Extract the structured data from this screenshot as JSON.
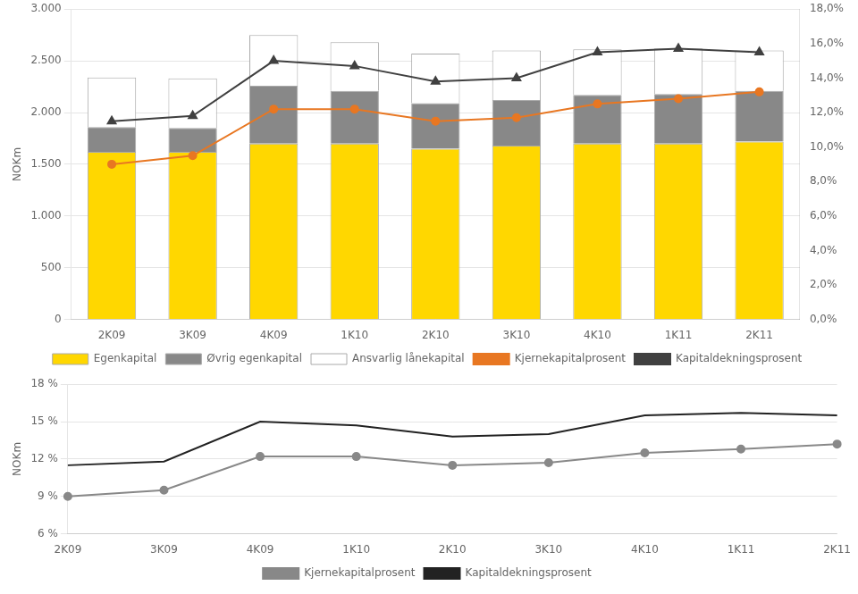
{
  "chart_data": [
    {
      "type": "bar",
      "stacked": true,
      "grid": true,
      "legend": "bottom",
      "ylabel": "NOKm",
      "categories": [
        "2K09",
        "3K09",
        "4K09",
        "1K10",
        "2K10",
        "3K10",
        "4K10",
        "1K11",
        "2K11"
      ],
      "series": [
        {
          "name": "Egenkapital",
          "color": "#FFD700",
          "values": [
            1620,
            1620,
            1700,
            1700,
            1650,
            1680,
            1700,
            1700,
            1720
          ]
        },
        {
          "name": "Øvrig egenkapital",
          "color": "#888888",
          "values": [
            240,
            230,
            560,
            510,
            440,
            440,
            470,
            480,
            490
          ]
        },
        {
          "name": "Ansvarlig lånekapital",
          "color": "#FFFFFF",
          "values": [
            480,
            480,
            490,
            470,
            480,
            480,
            440,
            440,
            390
          ]
        },
        {
          "name": "Kjernekapitalprosent",
          "type": "line",
          "axis": "y2",
          "color": "#E87722",
          "marker": "circle",
          "values": [
            0.09,
            0.095,
            0.122,
            0.122,
            0.115,
            0.117,
            0.125,
            0.128,
            0.132
          ]
        },
        {
          "name": "Kapitaldekningsprosent",
          "type": "line",
          "axis": "y2",
          "color": "#404040",
          "marker": "triangle",
          "values": [
            0.115,
            0.118,
            0.15,
            0.147,
            0.138,
            0.14,
            0.155,
            0.157,
            0.155
          ]
        }
      ],
      "ylim": [
        0,
        3000
      ],
      "yticks": [
        0,
        500,
        {
          "value": 1000,
          "label": "1.000"
        },
        {
          "value": 1500,
          "label": "1.500"
        },
        {
          "value": 2000,
          "label": "2.000"
        },
        {
          "value": 2500,
          "label": "2.500"
        },
        {
          "value": 3000,
          "label": "3.000"
        }
      ],
      "y2lim": [
        0,
        0.18
      ],
      "y2ticks": [
        {
          "value": 0.0,
          "label": "0,0%"
        },
        {
          "value": 0.02,
          "label": "2,0%"
        },
        {
          "value": 0.04,
          "label": "4,0%"
        },
        {
          "value": 0.06,
          "label": "6,0%"
        },
        {
          "value": 0.08,
          "label": "8,0%"
        },
        {
          "value": 0.1,
          "label": "10,0%"
        },
        {
          "value": 0.12,
          "label": "12,0%"
        },
        {
          "value": 0.14,
          "label": "14,0%"
        },
        {
          "value": 0.16,
          "label": "16,0%"
        },
        {
          "value": 0.18,
          "label": "18,0%"
        }
      ]
    },
    {
      "type": "line",
      "grid": true,
      "legend": "bottom",
      "ylabel": "NOKm",
      "categories": [
        "2K09",
        "3K09",
        "4K09",
        "1K10",
        "2K10",
        "3K10",
        "4K10",
        "1K11",
        "2K11"
      ],
      "series": [
        {
          "name": "Kjernekapitalprosent",
          "color": "#888888",
          "marker": "circle",
          "values": [
            0.09,
            0.095,
            0.122,
            0.122,
            0.115,
            0.117,
            0.125,
            0.128,
            0.132
          ]
        },
        {
          "name": "Kapitaldekningsprosent",
          "color": "#222222",
          "marker": "none",
          "values": [
            0.115,
            0.118,
            0.15,
            0.147,
            0.138,
            0.14,
            0.155,
            0.157,
            0.155
          ]
        }
      ],
      "ylim": [
        0.06,
        0.18
      ],
      "yticks": [
        {
          "value": 0.06,
          "label": "6 %"
        },
        {
          "value": 0.09,
          "label": "9 %"
        },
        {
          "value": 0.12,
          "label": "12 %"
        },
        {
          "value": 0.15,
          "label": "15 %"
        },
        {
          "value": 0.18,
          "label": "18 %"
        }
      ]
    }
  ]
}
